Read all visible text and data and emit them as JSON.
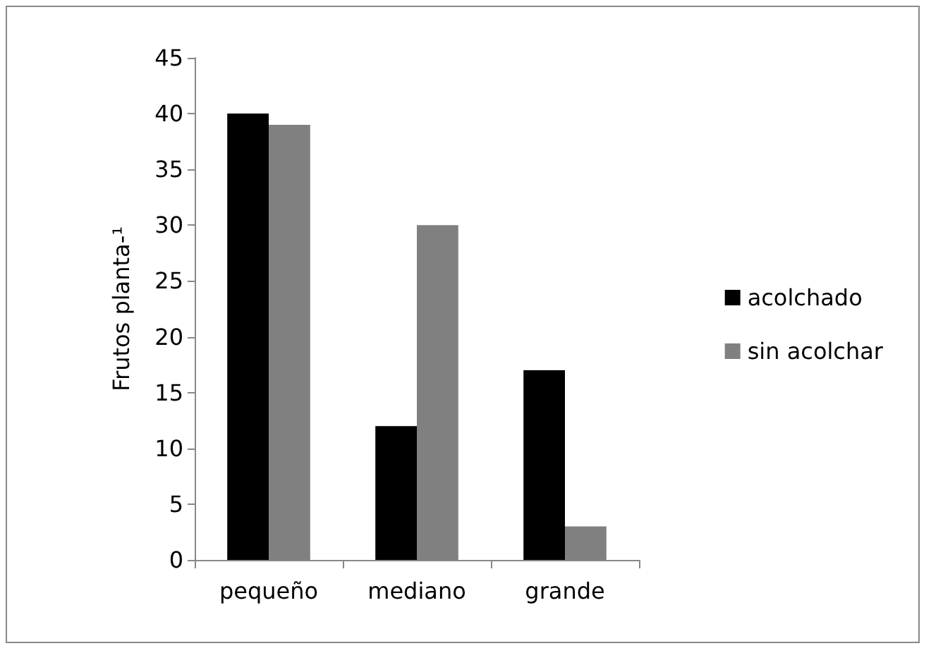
{
  "chart_data": {
    "type": "bar",
    "ylabel": "Frutos planta-¹",
    "categories": [
      "pequeño",
      "mediano",
      "grande"
    ],
    "series": [
      {
        "name": "acolchado",
        "color": "#000000",
        "values": [
          40,
          12,
          17
        ]
      },
      {
        "name": "sin acolchar",
        "color": "#808080",
        "values": [
          39,
          30,
          3
        ]
      }
    ],
    "ylim": [
      0,
      45
    ],
    "yticks": [
      0,
      5,
      10,
      15,
      20,
      25,
      30,
      35,
      40,
      45
    ],
    "grid": false,
    "legend": "right"
  }
}
